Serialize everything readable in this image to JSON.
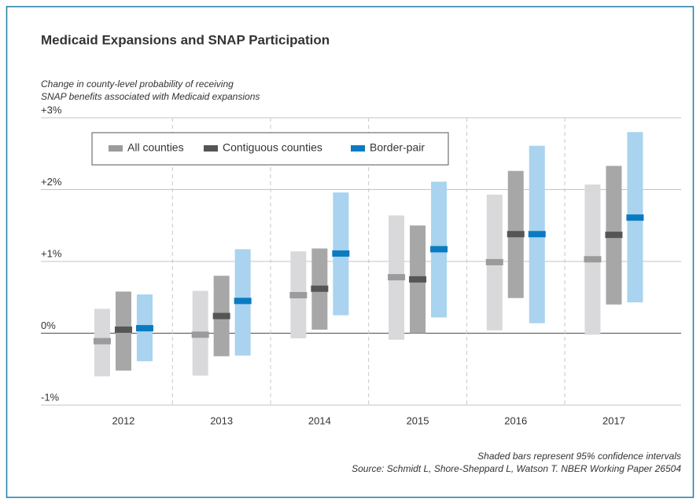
{
  "chart_data": {
    "type": "interval",
    "title": "Medicaid Expansions and SNAP Participation",
    "y_label": [
      "Change in county-level probability of receiving",
      "SNAP benefits associated with Medicaid expansions"
    ],
    "categories": [
      "2012",
      "2013",
      "2014",
      "2015",
      "2016",
      "2017"
    ],
    "series": [
      {
        "name": "All counties",
        "color": "#9b9b9b",
        "ci_color": "#d9d9dc",
        "values": [
          -0.11,
          -0.02,
          0.53,
          0.78,
          0.99,
          1.03
        ],
        "lower": [
          -0.6,
          -0.59,
          -0.07,
          -0.09,
          0.04,
          -0.02
        ],
        "upper": [
          0.34,
          0.59,
          1.14,
          1.64,
          1.93,
          2.07
        ]
      },
      {
        "name": "Contiguous counties",
        "color": "#555555",
        "ci_color": "#a7a7a7",
        "values": [
          0.05,
          0.24,
          0.62,
          0.75,
          1.38,
          1.37
        ],
        "lower": [
          -0.52,
          -0.32,
          0.05,
          0,
          0.49,
          0.4
        ],
        "upper": [
          0.58,
          0.8,
          1.18,
          1.5,
          2.26,
          2.33
        ]
      },
      {
        "name": "Border-pair",
        "color": "#0a7bc1",
        "ci_color": "#a9d3ee",
        "values": [
          0.07,
          0.45,
          1.11,
          1.17,
          1.38,
          1.61
        ],
        "lower": [
          -0.39,
          -0.31,
          0.25,
          0.22,
          0.14,
          0.43
        ],
        "upper": [
          0.54,
          1.17,
          1.96,
          2.11,
          2.61,
          2.8
        ]
      }
    ],
    "ylim": [
      -1,
      3
    ],
    "yticks": [
      {
        "value": -1,
        "label": "-1%"
      },
      {
        "value": 0,
        "label": "0%"
      },
      {
        "value": 1,
        "label": "+1%"
      },
      {
        "value": 2,
        "label": "+2%"
      },
      {
        "value": 3,
        "label": "+3%"
      }
    ],
    "grid": true,
    "legend": "top-left",
    "notes": [
      "Shaded bars represent 95% confidence intervals",
      "Source: Schmidt L, Shore-Sheppard L, Watson T. NBER Working Paper 26504"
    ]
  }
}
